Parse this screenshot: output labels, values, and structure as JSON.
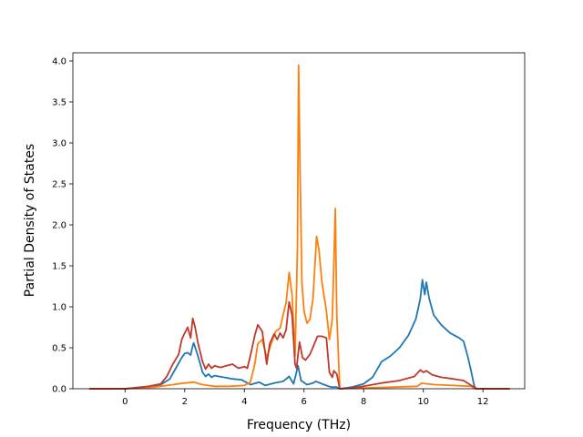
{
  "chart_data": {
    "type": "line",
    "title": "",
    "xlabel": "Frequency (THz)",
    "ylabel": "Partial Density of States",
    "xlim": [
      -1.75,
      13.4
    ],
    "ylim": [
      0,
      4.1
    ],
    "xticks": [
      0,
      2,
      4,
      6,
      8,
      10,
      12
    ],
    "xtick_labels": [
      "0",
      "2",
      "4",
      "6",
      "8",
      "10",
      "12"
    ],
    "yticks": [
      0.0,
      0.5,
      1.0,
      1.5,
      2.0,
      2.5,
      3.0,
      3.5,
      4.0
    ],
    "ytick_labels": [
      "0.0",
      "0.5",
      "1.0",
      "1.5",
      "2.0",
      "2.5",
      "3.0",
      "3.5",
      "4.0"
    ],
    "grid": false,
    "legend": "none",
    "series": [
      {
        "color": "#1f77b4",
        "points": [
          [
            -1.2,
            0
          ],
          [
            0,
            0
          ],
          [
            0.8,
            0.02
          ],
          [
            1.2,
            0.05
          ],
          [
            1.5,
            0.12
          ],
          [
            1.7,
            0.25
          ],
          [
            1.9,
            0.38
          ],
          [
            2.0,
            0.43
          ],
          [
            2.1,
            0.44
          ],
          [
            2.2,
            0.41
          ],
          [
            2.25,
            0.5
          ],
          [
            2.3,
            0.56
          ],
          [
            2.4,
            0.45
          ],
          [
            2.5,
            0.33
          ],
          [
            2.6,
            0.2
          ],
          [
            2.7,
            0.15
          ],
          [
            2.8,
            0.18
          ],
          [
            2.9,
            0.14
          ],
          [
            3.0,
            0.16
          ],
          [
            3.3,
            0.14
          ],
          [
            3.6,
            0.12
          ],
          [
            3.9,
            0.11
          ],
          [
            4.2,
            0.05
          ],
          [
            4.5,
            0.08
          ],
          [
            4.7,
            0.04
          ],
          [
            5.0,
            0.07
          ],
          [
            5.3,
            0.09
          ],
          [
            5.5,
            0.15
          ],
          [
            5.65,
            0.06
          ],
          [
            5.8,
            0.28
          ],
          [
            5.9,
            0.1
          ],
          [
            6.1,
            0.05
          ],
          [
            6.3,
            0.07
          ],
          [
            6.4,
            0.09
          ],
          [
            6.6,
            0.06
          ],
          [
            6.9,
            0.02
          ],
          [
            7.1,
            0.02
          ],
          [
            7.2,
            0.0
          ],
          [
            7.6,
            0.02
          ],
          [
            8.0,
            0.06
          ],
          [
            8.3,
            0.14
          ],
          [
            8.6,
            0.33
          ],
          [
            8.9,
            0.4
          ],
          [
            9.2,
            0.5
          ],
          [
            9.5,
            0.65
          ],
          [
            9.75,
            0.85
          ],
          [
            9.9,
            1.1
          ],
          [
            9.97,
            1.33
          ],
          [
            10.05,
            1.15
          ],
          [
            10.1,
            1.3
          ],
          [
            10.2,
            1.1
          ],
          [
            10.35,
            0.9
          ],
          [
            10.6,
            0.78
          ],
          [
            10.9,
            0.68
          ],
          [
            11.2,
            0.62
          ],
          [
            11.35,
            0.58
          ],
          [
            11.5,
            0.38
          ],
          [
            11.6,
            0.22
          ],
          [
            11.7,
            0.05
          ],
          [
            11.75,
            0.0
          ],
          [
            12.9,
            0.0
          ]
        ]
      },
      {
        "color": "#ff7f0e",
        "points": [
          [
            -1.2,
            0
          ],
          [
            0,
            0
          ],
          [
            1.0,
            0.02
          ],
          [
            1.6,
            0.05
          ],
          [
            2.0,
            0.07
          ],
          [
            2.3,
            0.08
          ],
          [
            2.6,
            0.05
          ],
          [
            3.0,
            0.03
          ],
          [
            3.5,
            0.03
          ],
          [
            4.0,
            0.04
          ],
          [
            4.2,
            0.08
          ],
          [
            4.35,
            0.3
          ],
          [
            4.45,
            0.55
          ],
          [
            4.6,
            0.6
          ],
          [
            4.75,
            0.38
          ],
          [
            4.9,
            0.55
          ],
          [
            5.05,
            0.7
          ],
          [
            5.2,
            0.74
          ],
          [
            5.3,
            0.9
          ],
          [
            5.4,
            1.05
          ],
          [
            5.5,
            1.42
          ],
          [
            5.6,
            1.15
          ],
          [
            5.7,
            0.4
          ],
          [
            5.78,
            1.7
          ],
          [
            5.82,
            3.95
          ],
          [
            5.88,
            2.4
          ],
          [
            5.93,
            1.3
          ],
          [
            6.0,
            0.95
          ],
          [
            6.1,
            0.8
          ],
          [
            6.2,
            0.85
          ],
          [
            6.3,
            1.1
          ],
          [
            6.42,
            1.86
          ],
          [
            6.5,
            1.7
          ],
          [
            6.6,
            1.3
          ],
          [
            6.75,
            0.95
          ],
          [
            6.85,
            0.6
          ],
          [
            6.95,
            0.85
          ],
          [
            7.05,
            2.2
          ],
          [
            7.1,
            0.9
          ],
          [
            7.2,
            0.0
          ],
          [
            9.0,
            0.02
          ],
          [
            9.8,
            0.03
          ],
          [
            9.95,
            0.07
          ],
          [
            10.1,
            0.06
          ],
          [
            10.4,
            0.05
          ],
          [
            11.0,
            0.04
          ],
          [
            11.6,
            0.03
          ],
          [
            11.75,
            0.0
          ],
          [
            12.9,
            0.0
          ]
        ]
      },
      {
        "color": "#c0392b",
        "points": [
          [
            -1.2,
            0
          ],
          [
            0,
            0
          ],
          [
            0.8,
            0.03
          ],
          [
            1.2,
            0.06
          ],
          [
            1.4,
            0.15
          ],
          [
            1.6,
            0.3
          ],
          [
            1.8,
            0.42
          ],
          [
            1.9,
            0.6
          ],
          [
            2.0,
            0.68
          ],
          [
            2.1,
            0.75
          ],
          [
            2.2,
            0.62
          ],
          [
            2.27,
            0.86
          ],
          [
            2.35,
            0.75
          ],
          [
            2.45,
            0.55
          ],
          [
            2.6,
            0.33
          ],
          [
            2.7,
            0.24
          ],
          [
            2.8,
            0.3
          ],
          [
            2.9,
            0.25
          ],
          [
            3.0,
            0.28
          ],
          [
            3.2,
            0.26
          ],
          [
            3.4,
            0.28
          ],
          [
            3.6,
            0.3
          ],
          [
            3.8,
            0.25
          ],
          [
            4.0,
            0.27
          ],
          [
            4.1,
            0.25
          ],
          [
            4.2,
            0.4
          ],
          [
            4.35,
            0.65
          ],
          [
            4.45,
            0.78
          ],
          [
            4.6,
            0.7
          ],
          [
            4.75,
            0.3
          ],
          [
            4.85,
            0.55
          ],
          [
            5.0,
            0.67
          ],
          [
            5.1,
            0.6
          ],
          [
            5.2,
            0.68
          ],
          [
            5.3,
            0.62
          ],
          [
            5.4,
            0.72
          ],
          [
            5.5,
            1.06
          ],
          [
            5.6,
            0.9
          ],
          [
            5.7,
            0.3
          ],
          [
            5.75,
            0.25
          ],
          [
            5.85,
            0.57
          ],
          [
            5.95,
            0.38
          ],
          [
            6.05,
            0.35
          ],
          [
            6.2,
            0.42
          ],
          [
            6.35,
            0.55
          ],
          [
            6.45,
            0.64
          ],
          [
            6.6,
            0.64
          ],
          [
            6.75,
            0.62
          ],
          [
            6.85,
            0.2
          ],
          [
            6.95,
            0.14
          ],
          [
            7.0,
            0.22
          ],
          [
            7.1,
            0.18
          ],
          [
            7.2,
            0.0
          ],
          [
            7.6,
            0.01
          ],
          [
            8.0,
            0.03
          ],
          [
            8.6,
            0.07
          ],
          [
            9.2,
            0.1
          ],
          [
            9.7,
            0.15
          ],
          [
            9.9,
            0.23
          ],
          [
            10.0,
            0.2
          ],
          [
            10.1,
            0.22
          ],
          [
            10.3,
            0.17
          ],
          [
            10.6,
            0.14
          ],
          [
            11.0,
            0.12
          ],
          [
            11.35,
            0.1
          ],
          [
            11.7,
            0.02
          ],
          [
            11.8,
            0.0
          ],
          [
            12.9,
            0.0
          ]
        ]
      }
    ]
  }
}
